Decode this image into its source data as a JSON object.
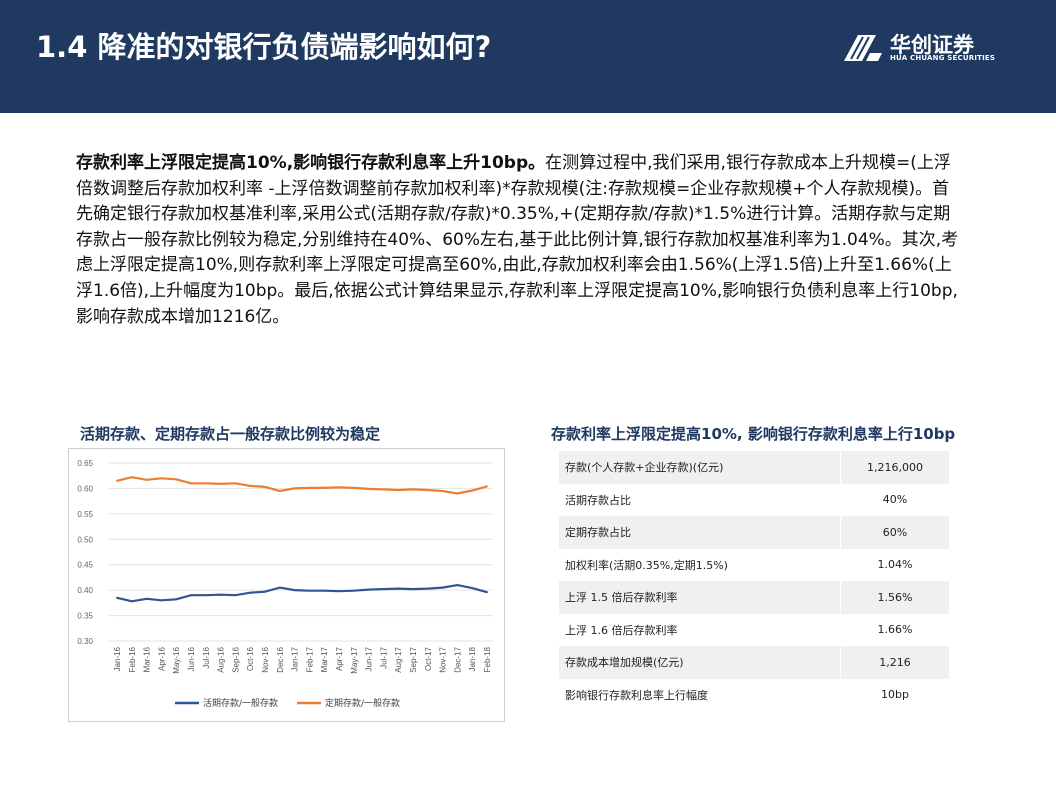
{
  "header": {
    "title": "1.4 降准的对银行负债端影响如何?",
    "logo_cn": "华创证券",
    "logo_en": "HUA CHUANG SECURITIES"
  },
  "paragraph": {
    "bold_lead": "存款利率上浮限定提高10%,影响银行存款利息率上升10bp。",
    "body": "在测算过程中,我们采用,银行存款成本上升规模=(上浮倍数调整后存款加权利率 -上浮倍数调整前存款加权利率)*存款规模(注:存款规模=企业存款规模+个人存款规模)。首先确定银行存款加权基准利率,采用公式(活期存款/存款)*0.35%,+(定期存款/存款)*1.5%进行计算。活期存款与定期存款占一般存款比例较为稳定,分别维持在40%、60%左右,基于此比例计算,银行存款加权基准利率为1.04%。其次,考虑上浮限定提高10%,则存款利率上浮限定可提高至60%,由此,存款加权利率会由1.56%(上浮1.5倍)上升至1.66%(上浮1.6倍),上升幅度为10bp。最后,依据公式计算结果显示,存款利率上浮限定提高10%,影响银行负债利息率上行10bp,影响存款成本增加1216亿。"
  },
  "left_panel": {
    "title": "活期存款、定期存款占一般存款比例较为稳定"
  },
  "right_panel": {
    "title": "存款利率上浮限定提高10%, 影响银行存款利息率上行10bp",
    "rows": [
      {
        "label": "存款(个人存款+企业存款)(亿元)",
        "value": "1,216,000"
      },
      {
        "label": "活期存款占比",
        "value": "40%"
      },
      {
        "label": "定期存款占比",
        "value": "60%"
      },
      {
        "label": "加权利率(活期0.35%,定期1.5%)",
        "value": "1.04%"
      },
      {
        "label": "上浮 1.5 倍后存款利率",
        "value": "1.56%"
      },
      {
        "label": "上浮 1.6 倍后存款利率",
        "value": "1.66%"
      },
      {
        "label": "存款成本增加规模(亿元)",
        "value": "1,216"
      },
      {
        "label": "影响银行存款利息率上行幅度",
        "value": "10bp"
      }
    ]
  },
  "chart_data": {
    "type": "line",
    "title": "",
    "ylim": [
      0.3,
      0.65
    ],
    "yticks": [
      "0.65",
      "0.60",
      "0.55",
      "0.50",
      "0.45",
      "0.40",
      "0.35",
      "0.30"
    ],
    "grid": true,
    "legend_position": "bottom",
    "x": [
      "Jan-16",
      "Feb-16",
      "Mar-16",
      "Apr-16",
      "May-16",
      "Jun-16",
      "Jul-16",
      "Aug-16",
      "Sep-16",
      "Oct-16",
      "Nov-16",
      "Dec-16",
      "Jan-17",
      "Feb-17",
      "Mar-17",
      "Apr-17",
      "May-17",
      "Jun-17",
      "Jul-17",
      "Aug-17",
      "Sep-17",
      "Oct-17",
      "Nov-17",
      "Dec-17",
      "Jan-18",
      "Feb-18"
    ],
    "series": [
      {
        "name": "活期存款/一般存款",
        "color": "#2f5597",
        "values": [
          0.385,
          0.378,
          0.383,
          0.38,
          0.382,
          0.39,
          0.39,
          0.391,
          0.39,
          0.395,
          0.397,
          0.405,
          0.4,
          0.399,
          0.399,
          0.398,
          0.399,
          0.401,
          0.402,
          0.403,
          0.402,
          0.403,
          0.405,
          0.41,
          0.404,
          0.396
        ]
      },
      {
        "name": "定期存款/一般存款",
        "color": "#ed7d31",
        "values": [
          0.615,
          0.622,
          0.617,
          0.62,
          0.618,
          0.61,
          0.61,
          0.609,
          0.61,
          0.605,
          0.603,
          0.595,
          0.6,
          0.601,
          0.601,
          0.602,
          0.601,
          0.599,
          0.598,
          0.597,
          0.598,
          0.597,
          0.595,
          0.59,
          0.596,
          0.604
        ]
      }
    ]
  }
}
